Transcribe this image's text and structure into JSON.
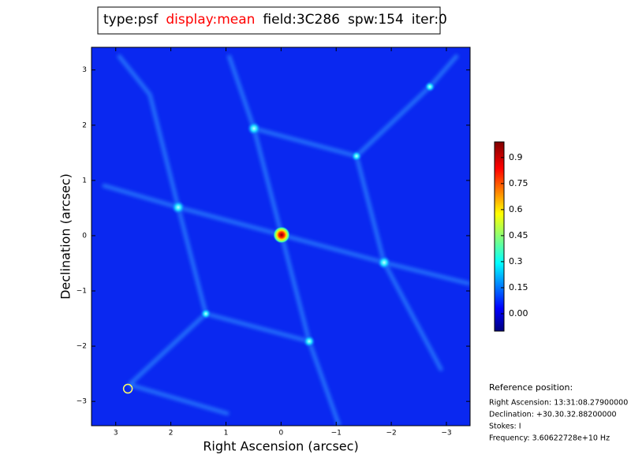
{
  "chart_data": {
    "type": "image",
    "title_parts": [
      {
        "text": "type:psf",
        "color": "#000000"
      },
      {
        "text": "display:mean",
        "color": "#ff0000"
      },
      {
        "text": "field:3C286",
        "color": "#000000"
      },
      {
        "text": "spw:154",
        "color": "#000000"
      },
      {
        "text": "iter:0",
        "color": "#000000"
      }
    ],
    "xlabel": "Right Ascension (arcsec)",
    "ylabel": "Declination (arcsec)",
    "xlim": [
      3.44,
      -3.43
    ],
    "ylim": [
      -3.44,
      3.41
    ],
    "xticks": [
      3,
      2,
      1,
      0,
      {
        "value": -1,
        "label": "−1"
      },
      {
        "value": -2,
        "label": "−2"
      },
      {
        "value": -3,
        "label": "−3"
      }
    ],
    "yticks": [
      {
        "value": -3,
        "label": "−3"
      },
      {
        "value": -2,
        "label": "−2"
      },
      {
        "value": -1,
        "label": "−1"
      },
      0,
      1,
      2,
      3
    ],
    "clim": [
      -0.1,
      0.99
    ],
    "cticks": [
      {
        "value": 0,
        "label": "0.00"
      },
      0.15,
      0.3,
      0.45,
      0.6,
      0.75,
      0.9
    ],
    "marker": {
      "x": 2.78,
      "y": -2.77,
      "color": "#ffff66"
    },
    "annotations": [
      "Reference position:",
      "Right Ascension: 13:31:08.27900000",
      "Declination: +30.30.32.88200000",
      "Stokes: I",
      "Frequency: 3.60622728e+10 Hz"
    ]
  }
}
